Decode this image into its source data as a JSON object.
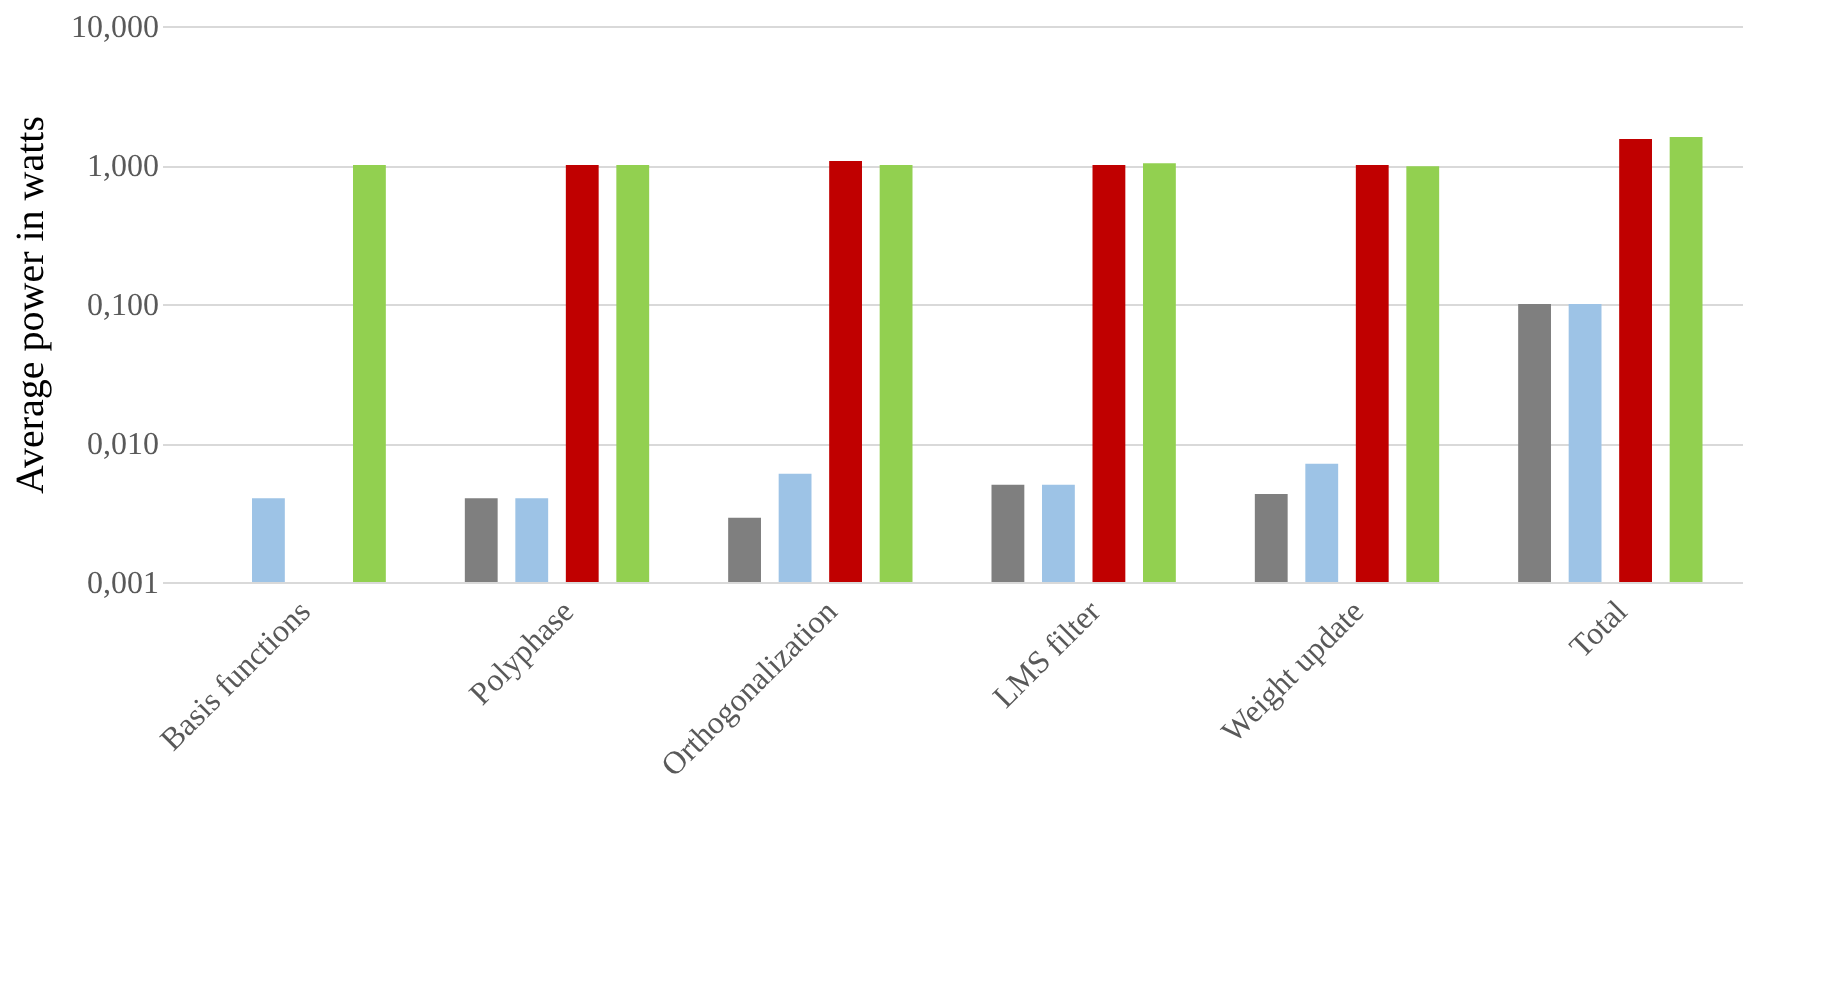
{
  "chart_data": {
    "type": "bar",
    "ylabel": "Average power in watts",
    "categories": [
      "Basis functions",
      "Polyphase",
      "Orthogonalization",
      "LMS filter",
      "Weight update",
      "Total"
    ],
    "series": [
      {
        "color": "#7f7f7f",
        "values": [
          null,
          0.004,
          0.0029,
          0.005,
          0.0043,
          0.1
        ]
      },
      {
        "color": "#9dc3e6",
        "values": [
          0.004,
          0.004,
          0.006,
          0.005,
          0.0071,
          0.1
        ]
      },
      {
        "color": "#c00000",
        "values": [
          null,
          1.0,
          1.07,
          1.0,
          1.0,
          1.54
        ]
      },
      {
        "color": "#92d050",
        "values": [
          1.0,
          1.0,
          1.0,
          1.03,
          0.98,
          1.59
        ]
      }
    ],
    "log": "y",
    "ylim": [
      0.001,
      10
    ],
    "yticks": [
      {
        "value": 0.001,
        "label": "0,001"
      },
      {
        "value": 0.01,
        "label": "0,010"
      },
      {
        "value": 0.1,
        "label": "0,100"
      },
      {
        "value": 1,
        "label": "1,000"
      },
      {
        "value": 10,
        "label": "10,000"
      }
    ],
    "grid": "y"
  }
}
